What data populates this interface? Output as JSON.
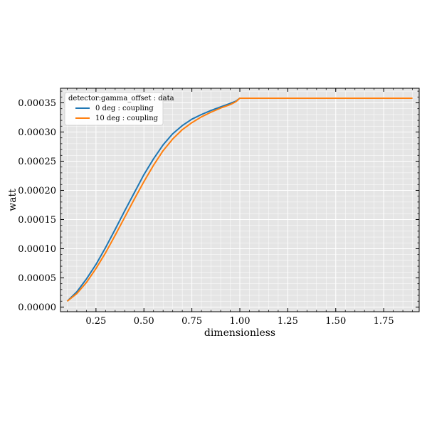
{
  "chart_data": {
    "type": "line",
    "title": "",
    "xlabel": "dimensionless",
    "ylabel": "watt",
    "xlim": [
      0.065,
      1.935
    ],
    "ylim": [
      -8e-06,
      0.000375
    ],
    "xticks": [
      0.25,
      0.5,
      0.75,
      1.0,
      1.25,
      1.5,
      1.75
    ],
    "xtick_labels": [
      "0.25",
      "0.50",
      "0.75",
      "1.00",
      "1.25",
      "1.50",
      "1.75"
    ],
    "yticks": [
      0,
      5e-05,
      0.0001,
      0.00015,
      0.0002,
      0.00025,
      0.0003,
      0.00035
    ],
    "ytick_labels": [
      "0.00000",
      "0.00005",
      "0.00010",
      "0.00015",
      "0.00020",
      "0.00025",
      "0.00030",
      "0.00035"
    ],
    "grid": true,
    "legend": {
      "title": "detector:gamma_offset : data",
      "placement": "top-left"
    },
    "series": [
      {
        "name": "0 deg : coupling",
        "color": "#1f77b4",
        "x": [
          0.1,
          0.15,
          0.2,
          0.25,
          0.3,
          0.35,
          0.4,
          0.45,
          0.5,
          0.55,
          0.6,
          0.65,
          0.7,
          0.75,
          0.8,
          0.85,
          0.9,
          0.95,
          0.98,
          1.0,
          1.1,
          1.2,
          1.3,
          1.4,
          1.5,
          1.6,
          1.7,
          1.8,
          1.9
        ],
        "y": [
          1e-05,
          2.6e-05,
          4.8e-05,
          7.3e-05,
          0.000102,
          0.000133,
          0.000165,
          0.000196,
          0.000227,
          0.000254,
          0.000278,
          0.000297,
          0.000311,
          0.000322,
          0.00033,
          0.000337,
          0.000343,
          0.000349,
          0.000353,
          0.000358,
          0.000358,
          0.000358,
          0.000358,
          0.000358,
          0.000358,
          0.000358,
          0.000358,
          0.000358,
          0.000358
        ]
      },
      {
        "name": "10 deg : coupling",
        "color": "#ff7f0e",
        "x": [
          0.1,
          0.15,
          0.2,
          0.25,
          0.3,
          0.35,
          0.4,
          0.45,
          0.5,
          0.55,
          0.6,
          0.65,
          0.7,
          0.75,
          0.8,
          0.85,
          0.9,
          0.95,
          0.98,
          1.0,
          1.1,
          1.2,
          1.3,
          1.4,
          1.5,
          1.6,
          1.7,
          1.8,
          1.9
        ],
        "y": [
          1e-05,
          2.3e-05,
          4.2e-05,
          6.6e-05,
          9.3e-05,
          0.000123,
          0.000154,
          0.000185,
          0.000215,
          0.000243,
          0.000268,
          0.000288,
          0.000304,
          0.000316,
          0.000326,
          0.000334,
          0.000341,
          0.000347,
          0.000352,
          0.000358,
          0.000358,
          0.000358,
          0.000358,
          0.000358,
          0.000358,
          0.000358,
          0.000358,
          0.000358,
          0.000358
        ]
      }
    ]
  }
}
